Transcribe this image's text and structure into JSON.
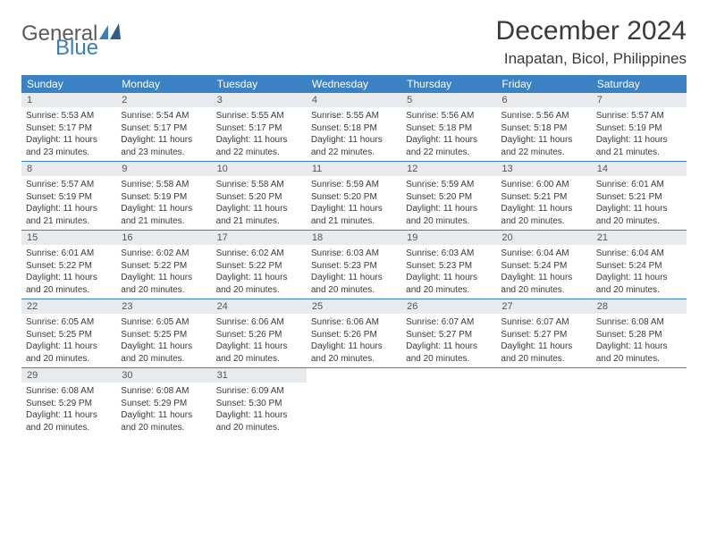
{
  "logo": {
    "part1": "General",
    "part2": "Blue"
  },
  "title": "December 2024",
  "location": "Inapatan, Bicol, Philippines",
  "colors": {
    "header_bg": "#3a82c4",
    "daynum_bg": "#e8ebed",
    "border": "#3a82c4",
    "logo_blue": "#3a7fb8"
  },
  "weekdays": [
    "Sunday",
    "Monday",
    "Tuesday",
    "Wednesday",
    "Thursday",
    "Friday",
    "Saturday"
  ],
  "weeks": [
    [
      {
        "num": "1",
        "sunrise": "Sunrise: 5:53 AM",
        "sunset": "Sunset: 5:17 PM",
        "daylight": "Daylight: 11 hours and 23 minutes."
      },
      {
        "num": "2",
        "sunrise": "Sunrise: 5:54 AM",
        "sunset": "Sunset: 5:17 PM",
        "daylight": "Daylight: 11 hours and 23 minutes."
      },
      {
        "num": "3",
        "sunrise": "Sunrise: 5:55 AM",
        "sunset": "Sunset: 5:17 PM",
        "daylight": "Daylight: 11 hours and 22 minutes."
      },
      {
        "num": "4",
        "sunrise": "Sunrise: 5:55 AM",
        "sunset": "Sunset: 5:18 PM",
        "daylight": "Daylight: 11 hours and 22 minutes."
      },
      {
        "num": "5",
        "sunrise": "Sunrise: 5:56 AM",
        "sunset": "Sunset: 5:18 PM",
        "daylight": "Daylight: 11 hours and 22 minutes."
      },
      {
        "num": "6",
        "sunrise": "Sunrise: 5:56 AM",
        "sunset": "Sunset: 5:18 PM",
        "daylight": "Daylight: 11 hours and 22 minutes."
      },
      {
        "num": "7",
        "sunrise": "Sunrise: 5:57 AM",
        "sunset": "Sunset: 5:19 PM",
        "daylight": "Daylight: 11 hours and 21 minutes."
      }
    ],
    [
      {
        "num": "8",
        "sunrise": "Sunrise: 5:57 AM",
        "sunset": "Sunset: 5:19 PM",
        "daylight": "Daylight: 11 hours and 21 minutes."
      },
      {
        "num": "9",
        "sunrise": "Sunrise: 5:58 AM",
        "sunset": "Sunset: 5:19 PM",
        "daylight": "Daylight: 11 hours and 21 minutes."
      },
      {
        "num": "10",
        "sunrise": "Sunrise: 5:58 AM",
        "sunset": "Sunset: 5:20 PM",
        "daylight": "Daylight: 11 hours and 21 minutes."
      },
      {
        "num": "11",
        "sunrise": "Sunrise: 5:59 AM",
        "sunset": "Sunset: 5:20 PM",
        "daylight": "Daylight: 11 hours and 21 minutes."
      },
      {
        "num": "12",
        "sunrise": "Sunrise: 5:59 AM",
        "sunset": "Sunset: 5:20 PM",
        "daylight": "Daylight: 11 hours and 20 minutes."
      },
      {
        "num": "13",
        "sunrise": "Sunrise: 6:00 AM",
        "sunset": "Sunset: 5:21 PM",
        "daylight": "Daylight: 11 hours and 20 minutes."
      },
      {
        "num": "14",
        "sunrise": "Sunrise: 6:01 AM",
        "sunset": "Sunset: 5:21 PM",
        "daylight": "Daylight: 11 hours and 20 minutes."
      }
    ],
    [
      {
        "num": "15",
        "sunrise": "Sunrise: 6:01 AM",
        "sunset": "Sunset: 5:22 PM",
        "daylight": "Daylight: 11 hours and 20 minutes."
      },
      {
        "num": "16",
        "sunrise": "Sunrise: 6:02 AM",
        "sunset": "Sunset: 5:22 PM",
        "daylight": "Daylight: 11 hours and 20 minutes."
      },
      {
        "num": "17",
        "sunrise": "Sunrise: 6:02 AM",
        "sunset": "Sunset: 5:22 PM",
        "daylight": "Daylight: 11 hours and 20 minutes."
      },
      {
        "num": "18",
        "sunrise": "Sunrise: 6:03 AM",
        "sunset": "Sunset: 5:23 PM",
        "daylight": "Daylight: 11 hours and 20 minutes."
      },
      {
        "num": "19",
        "sunrise": "Sunrise: 6:03 AM",
        "sunset": "Sunset: 5:23 PM",
        "daylight": "Daylight: 11 hours and 20 minutes."
      },
      {
        "num": "20",
        "sunrise": "Sunrise: 6:04 AM",
        "sunset": "Sunset: 5:24 PM",
        "daylight": "Daylight: 11 hours and 20 minutes."
      },
      {
        "num": "21",
        "sunrise": "Sunrise: 6:04 AM",
        "sunset": "Sunset: 5:24 PM",
        "daylight": "Daylight: 11 hours and 20 minutes."
      }
    ],
    [
      {
        "num": "22",
        "sunrise": "Sunrise: 6:05 AM",
        "sunset": "Sunset: 5:25 PM",
        "daylight": "Daylight: 11 hours and 20 minutes."
      },
      {
        "num": "23",
        "sunrise": "Sunrise: 6:05 AM",
        "sunset": "Sunset: 5:25 PM",
        "daylight": "Daylight: 11 hours and 20 minutes."
      },
      {
        "num": "24",
        "sunrise": "Sunrise: 6:06 AM",
        "sunset": "Sunset: 5:26 PM",
        "daylight": "Daylight: 11 hours and 20 minutes."
      },
      {
        "num": "25",
        "sunrise": "Sunrise: 6:06 AM",
        "sunset": "Sunset: 5:26 PM",
        "daylight": "Daylight: 11 hours and 20 minutes."
      },
      {
        "num": "26",
        "sunrise": "Sunrise: 6:07 AM",
        "sunset": "Sunset: 5:27 PM",
        "daylight": "Daylight: 11 hours and 20 minutes."
      },
      {
        "num": "27",
        "sunrise": "Sunrise: 6:07 AM",
        "sunset": "Sunset: 5:27 PM",
        "daylight": "Daylight: 11 hours and 20 minutes."
      },
      {
        "num": "28",
        "sunrise": "Sunrise: 6:08 AM",
        "sunset": "Sunset: 5:28 PM",
        "daylight": "Daylight: 11 hours and 20 minutes."
      }
    ],
    [
      {
        "num": "29",
        "sunrise": "Sunrise: 6:08 AM",
        "sunset": "Sunset: 5:29 PM",
        "daylight": "Daylight: 11 hours and 20 minutes."
      },
      {
        "num": "30",
        "sunrise": "Sunrise: 6:08 AM",
        "sunset": "Sunset: 5:29 PM",
        "daylight": "Daylight: 11 hours and 20 minutes."
      },
      {
        "num": "31",
        "sunrise": "Sunrise: 6:09 AM",
        "sunset": "Sunset: 5:30 PM",
        "daylight": "Daylight: 11 hours and 20 minutes."
      },
      null,
      null,
      null,
      null
    ]
  ]
}
